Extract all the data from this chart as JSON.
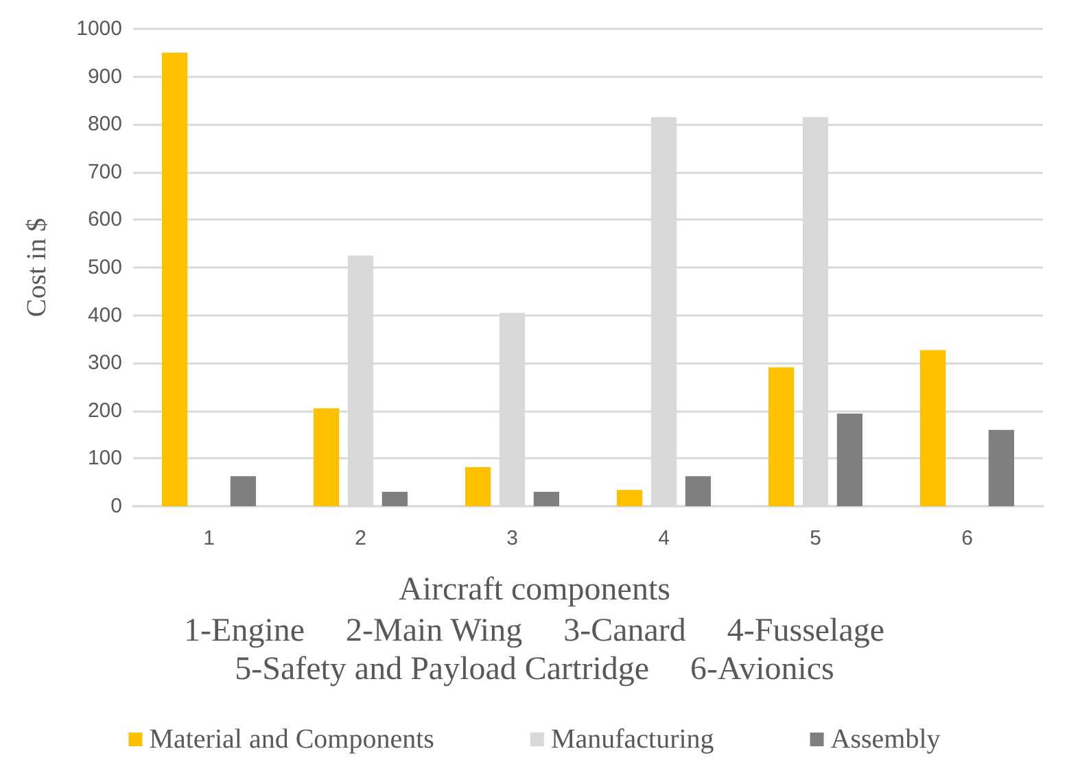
{
  "chart_data": {
    "type": "bar",
    "categories": [
      "1",
      "2",
      "3",
      "4",
      "5",
      "6"
    ],
    "series": [
      {
        "name": "Material and Components",
        "color": "#ffc000",
        "values": [
          950,
          205,
          82,
          34,
          291,
          327
        ]
      },
      {
        "name": "Manufacturing",
        "color": "#d9d9d9",
        "values": [
          null,
          525,
          405,
          815,
          815,
          null
        ]
      },
      {
        "name": "Assembly",
        "color": "#7f7f7f",
        "values": [
          63,
          30,
          30,
          63,
          194,
          160
        ]
      }
    ],
    "xlabel": "Aircraft components",
    "ylabel": "Cost in $",
    "annotations": [
      "1-Engine     2-Main Wing     3-Canard     4-Fusselage",
      "5-Safety and Payload Cartridge     6-Avionics"
    ],
    "ylim": [
      0,
      1000
    ],
    "yticks": [
      0,
      100,
      200,
      300,
      400,
      500,
      600,
      700,
      800,
      900,
      1000
    ],
    "grid": "y",
    "legend": "bottom"
  }
}
